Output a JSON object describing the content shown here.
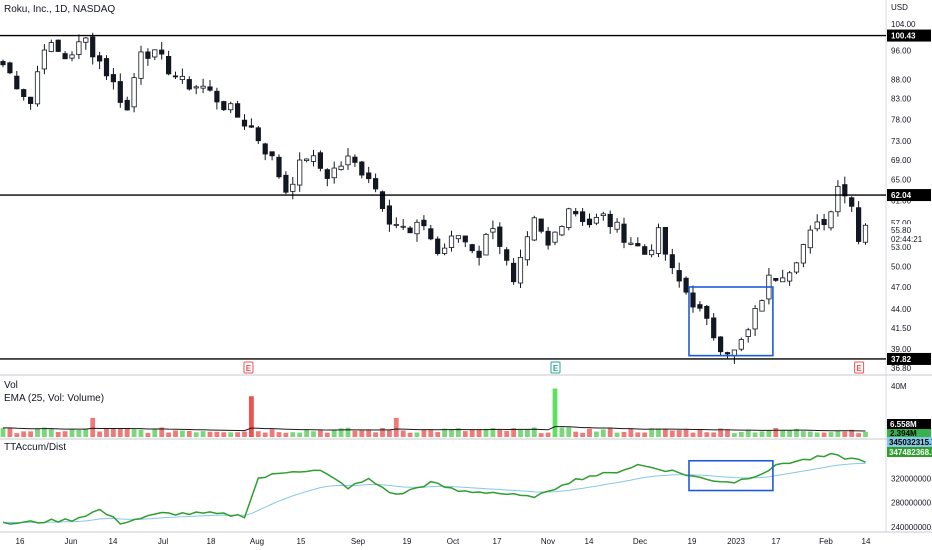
{
  "header": {
    "title": "Roku, Inc., 1D, NASDAQ",
    "currency": "USD"
  },
  "panes": {
    "volume": {
      "title": "Vol",
      "indicator": "EMA (25, Vol: Volume)"
    },
    "accum": {
      "title": "TTAccum/Dist"
    }
  },
  "price_axis": {
    "ticks": [
      "104.00",
      "96.00",
      "88.00",
      "83.00",
      "78.00",
      "73.00",
      "69.00",
      "65.00",
      "61.00",
      "57.00",
      "53.00",
      "50.00",
      "47.00",
      "44.00",
      "41.50",
      "39.00",
      "36.80"
    ],
    "countdown": "02:44:21",
    "last_price": "55.80"
  },
  "levels": [
    {
      "label": "100.43",
      "value": 100.43
    },
    {
      "label": "62.04",
      "value": 62.04
    },
    {
      "label": "37.82",
      "value": 37.82
    }
  ],
  "volume_axis": {
    "ticks": [
      "40M"
    ],
    "tag_last": "6.558M",
    "tag_ema": "2.394M"
  },
  "accum_axis": {
    "ticks": [
      "320000000.00",
      "280000000.00",
      "240000000.00"
    ],
    "tag_value": "347482368.55",
    "tag_ema": "345032315.75"
  },
  "date_axis": [
    "16",
    "Jun",
    "14",
    "Jul",
    "18",
    "Aug",
    "15",
    "Sep",
    "19",
    "Oct",
    "17",
    "Nov",
    "14",
    "Dec",
    "19",
    "2023",
    "17",
    "Feb",
    "14"
  ],
  "event_markers": [
    "E",
    "E",
    "E"
  ],
  "colors": {
    "up": "#26a69a",
    "candle_body": "#131722",
    "vol_up": "#7bd77b",
    "vol_down": "#ef7a7a",
    "vol_spike_up": "#5fe05f",
    "vol_spike_down": "#ef5350",
    "accum_line": "#2e9e2e",
    "accum_ema": "#85c8e8",
    "box": "#1e5bd8",
    "level": "#000000",
    "earnings": "#ef5350",
    "earnings_green": "#26a69a"
  },
  "chart_data": [
    {
      "type": "candlestick",
      "title": "Roku, Inc., 1D, NASDAQ",
      "ylim": [
        36.8,
        104
      ],
      "scale": "log",
      "close_path": [
        [
          0,
          92
        ],
        [
          4,
          82
        ],
        [
          6,
          98
        ],
        [
          9,
          94
        ],
        [
          12,
          99
        ],
        [
          15,
          90
        ],
        [
          18,
          80
        ],
        [
          20,
          97
        ],
        [
          23,
          93
        ],
        [
          26,
          87
        ],
        [
          29,
          86
        ],
        [
          33,
          80
        ],
        [
          36,
          76
        ],
        [
          39,
          69
        ],
        [
          41,
          63
        ],
        [
          44,
          70
        ],
        [
          47,
          66
        ],
        [
          50,
          69
        ],
        [
          53,
          66
        ],
        [
          56,
          58
        ],
        [
          59,
          55
        ],
        [
          61,
          57
        ],
        [
          63,
          52
        ],
        [
          66,
          55
        ],
        [
          69,
          52
        ],
        [
          71,
          57
        ],
        [
          74,
          47
        ],
        [
          77,
          57
        ],
        [
          79,
          53
        ],
        [
          82,
          60
        ],
        [
          85,
          57
        ],
        [
          87,
          58
        ],
        [
          90,
          55
        ],
        [
          93,
          52
        ],
        [
          95,
          55
        ],
        [
          97,
          49
        ],
        [
          100,
          45
        ],
        [
          102,
          42
        ],
        [
          104,
          39.5
        ],
        [
          106,
          38.5
        ],
        [
          108,
          41
        ],
        [
          111,
          48
        ],
        [
          114,
          50
        ],
        [
          117,
          55
        ],
        [
          120,
          59
        ],
        [
          121,
          65
        ],
        [
          123,
          60
        ],
        [
          124,
          55
        ],
        [
          125,
          57
        ]
      ],
      "levels": [
        100.43,
        62.04,
        37.82
      ],
      "last": 55.8
    },
    {
      "type": "bar",
      "title": "Vol",
      "series_label": "EMA (25, Vol: Volume)",
      "ylim": [
        0,
        40000000
      ],
      "spikes": [
        {
          "index": 36,
          "value": 32000000,
          "color": "red"
        },
        {
          "index": 80,
          "value": 38000000,
          "color": "green"
        }
      ],
      "last": 6558000,
      "ema_last": 2394000
    },
    {
      "type": "line",
      "title": "TTAccum/Dist",
      "ylim": [
        235000000,
        370000000
      ],
      "value_path": [
        [
          0,
          245000000
        ],
        [
          10,
          252000000
        ],
        [
          14,
          268000000
        ],
        [
          17,
          247000000
        ],
        [
          23,
          262000000
        ],
        [
          30,
          262000000
        ],
        [
          35,
          258000000
        ],
        [
          37,
          320000000
        ],
        [
          42,
          333000000
        ],
        [
          46,
          332000000
        ],
        [
          50,
          305000000
        ],
        [
          53,
          318000000
        ],
        [
          57,
          292000000
        ],
        [
          62,
          313000000
        ],
        [
          66,
          299000000
        ],
        [
          71,
          297000000
        ],
        [
          76,
          289000000
        ],
        [
          79,
          296000000
        ],
        [
          81,
          311000000
        ],
        [
          85,
          324000000
        ],
        [
          88,
          328000000
        ],
        [
          92,
          342000000
        ],
        [
          97,
          332000000
        ],
        [
          102,
          318000000
        ],
        [
          106,
          314000000
        ],
        [
          110,
          329000000
        ],
        [
          113,
          345000000
        ],
        [
          116,
          350000000
        ],
        [
          120,
          358000000
        ],
        [
          123,
          352000000
        ],
        [
          125,
          349000000
        ]
      ],
      "last": 347482368.55,
      "ema_last": 345032315.75
    }
  ]
}
